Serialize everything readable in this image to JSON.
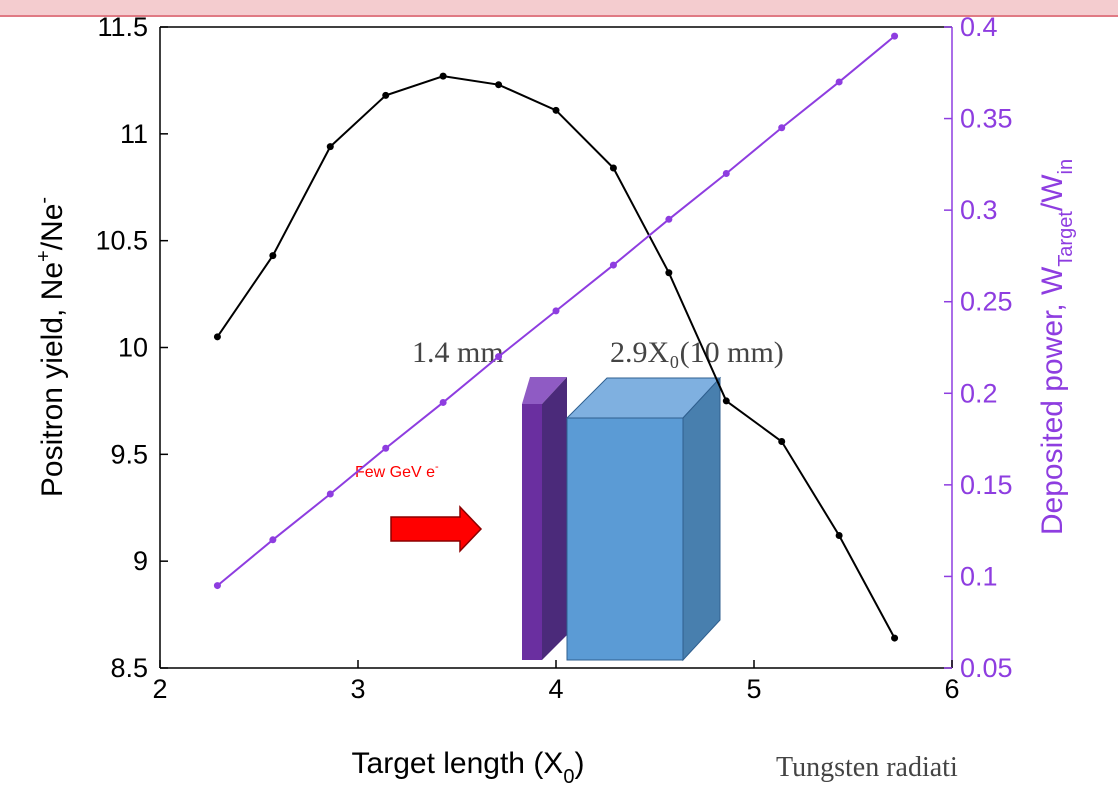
{
  "chart_data": {
    "type": "line",
    "x": [
      2.29,
      2.57,
      2.86,
      3.14,
      3.43,
      3.71,
      4,
      4.29,
      4.57,
      4.86,
      5.14,
      5.43,
      5.71
    ],
    "series": [
      {
        "color": "#000000",
        "values": [
          10.05,
          10.43,
          10.94,
          11.18,
          11.27,
          11.23,
          11.11,
          10.84,
          10.35,
          9.75,
          9.56,
          9.12,
          8.64
        ]
      },
      {
        "color": "#8e3de0",
        "axis": "y2",
        "values": [
          0.095,
          0.12,
          0.145,
          0.17,
          0.195,
          0.22,
          0.245,
          0.27,
          0.295,
          0.32,
          0.345,
          0.37,
          0.395
        ]
      }
    ],
    "xlim": [
      2,
      6
    ],
    "xticks": [
      2,
      3,
      4,
      5,
      6
    ],
    "ylim": [
      8.5,
      11.5
    ],
    "yticks": [
      8.5,
      9,
      9.5,
      10,
      10.5,
      11,
      11.5
    ],
    "y2lim": [
      0.05,
      0.4
    ],
    "y2ticks": [
      0.05,
      0.1,
      0.15,
      0.2,
      0.25,
      0.3,
      0.35,
      0.4
    ],
    "x_label": [
      "Target length (X",
      "0",
      ")"
    ],
    "y_label": [
      "Positron yield, Ne",
      "+",
      "/Ne",
      "-"
    ],
    "y2_label": [
      "Deposited power, W",
      "Target",
      "/W",
      "in"
    ],
    "annotations": {
      "thin_target": "1.4 mm",
      "thick_target": "2.9X₀(10 mm)",
      "beam": [
        "Few GeV e",
        "-"
      ],
      "caption": "Tungsten radiati"
    }
  }
}
